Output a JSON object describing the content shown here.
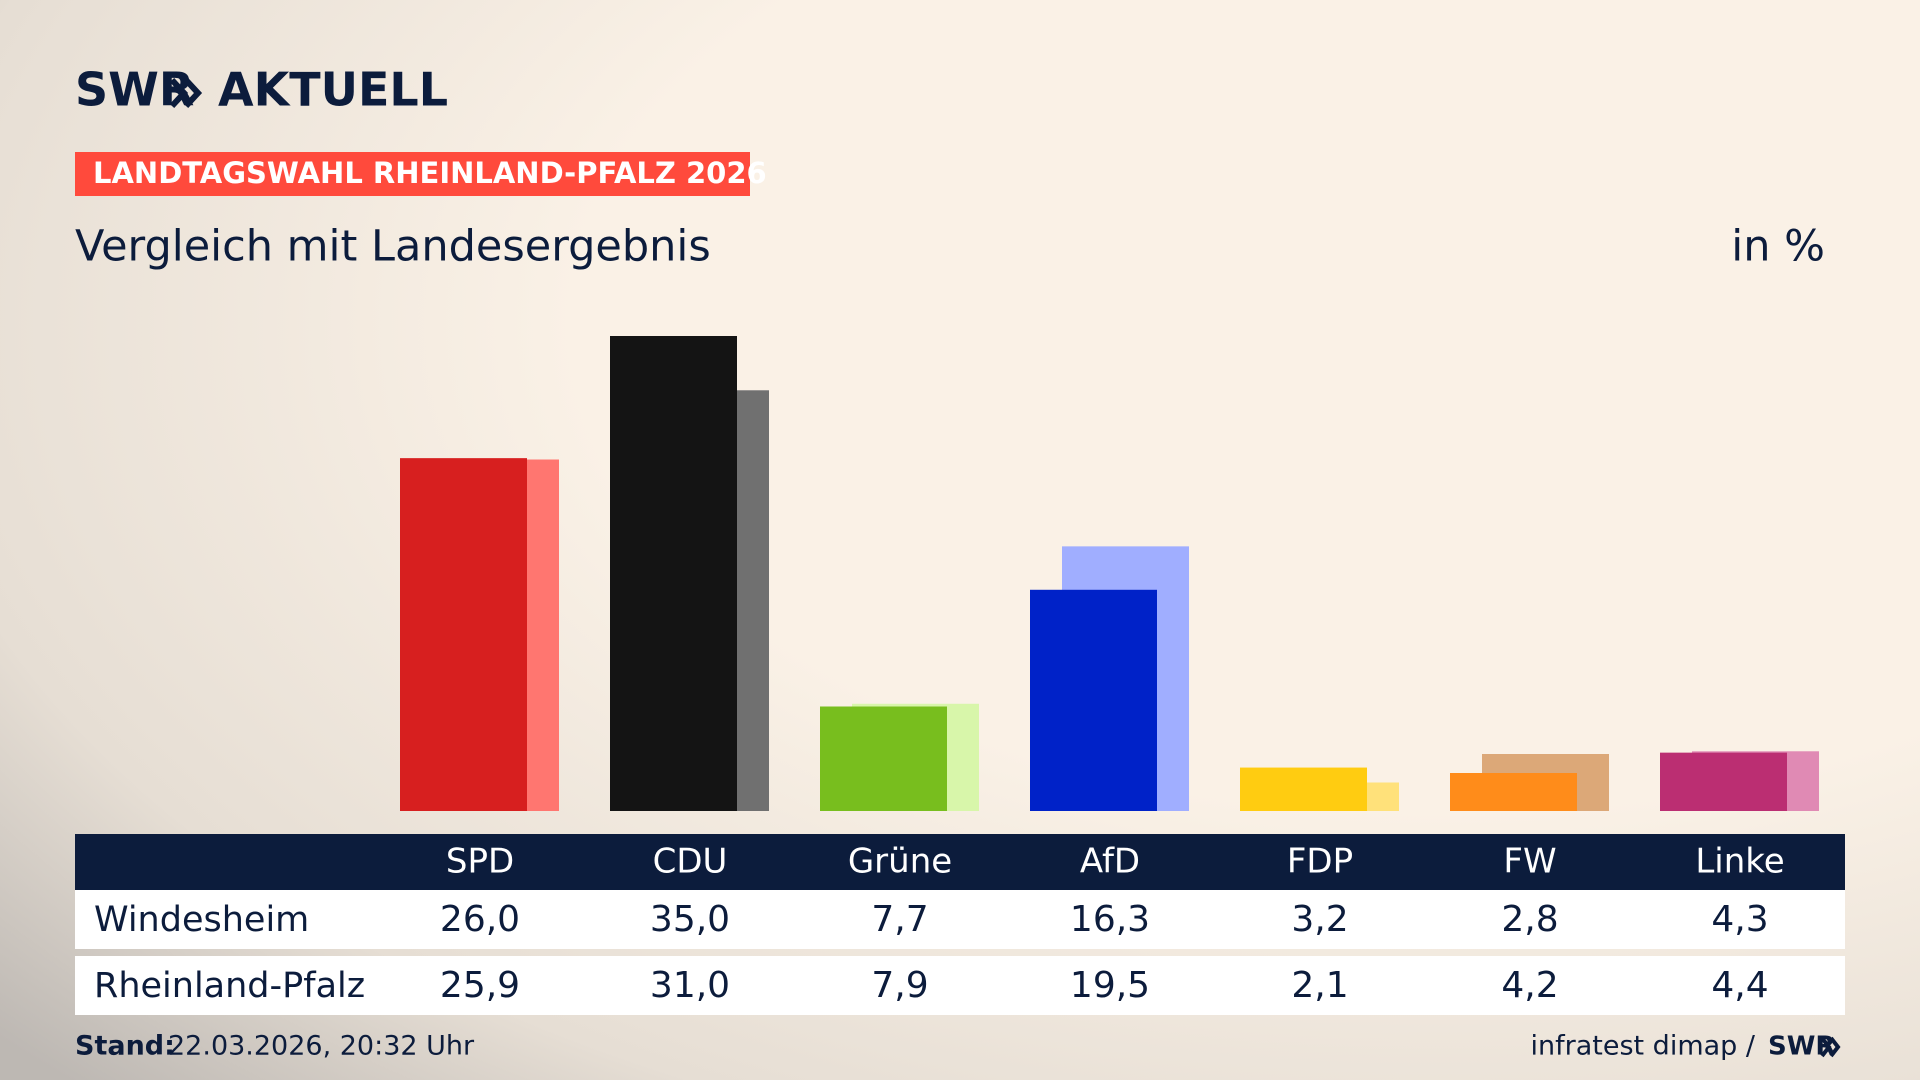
{
  "header": {
    "logo": "SWR",
    "logo_suffix": "AKTUELL",
    "banner": "LANDTAGSWAHL RHEINLAND-PFALZ 2026"
  },
  "chart_data": {
    "type": "bar",
    "title": "Vergleich mit Landesergebnis",
    "unit": "in %",
    "categories": [
      "SPD",
      "CDU",
      "Grüne",
      "AfD",
      "FDP",
      "FW",
      "Linke"
    ],
    "series": [
      {
        "name": "Windesheim",
        "colors": [
          "#d71f1f",
          "#141414",
          "#78be1e",
          "#0022c8",
          "#ffcc11",
          "#ff8c1a",
          "#bb2e72"
        ],
        "values": [
          26.0,
          35.0,
          7.7,
          16.3,
          3.2,
          2.8,
          4.3
        ],
        "value_labels": [
          "26,0",
          "35,0",
          "7,7",
          "16,3",
          "3,2",
          "2,8",
          "4,3"
        ]
      },
      {
        "name": "Rheinland-Pfalz",
        "colors": [
          "#ff7670",
          "#707070",
          "#d8f6aa",
          "#a0aeff",
          "#ffe17a",
          "#dca878",
          "#e08ab4"
        ],
        "values": [
          25.9,
          31.0,
          7.9,
          19.5,
          2.1,
          4.2,
          4.4
        ],
        "value_labels": [
          "25,9",
          "31,0",
          "7,9",
          "19,5",
          "2,1",
          "4,2",
          "4,4"
        ]
      }
    ],
    "ylim": [
      0,
      35
    ]
  },
  "footer": {
    "stand_label": "Stand:",
    "stand": "22.03.2026, 20:32 Uhr",
    "source": "infratest dimap /",
    "source_logo": "SWR"
  }
}
